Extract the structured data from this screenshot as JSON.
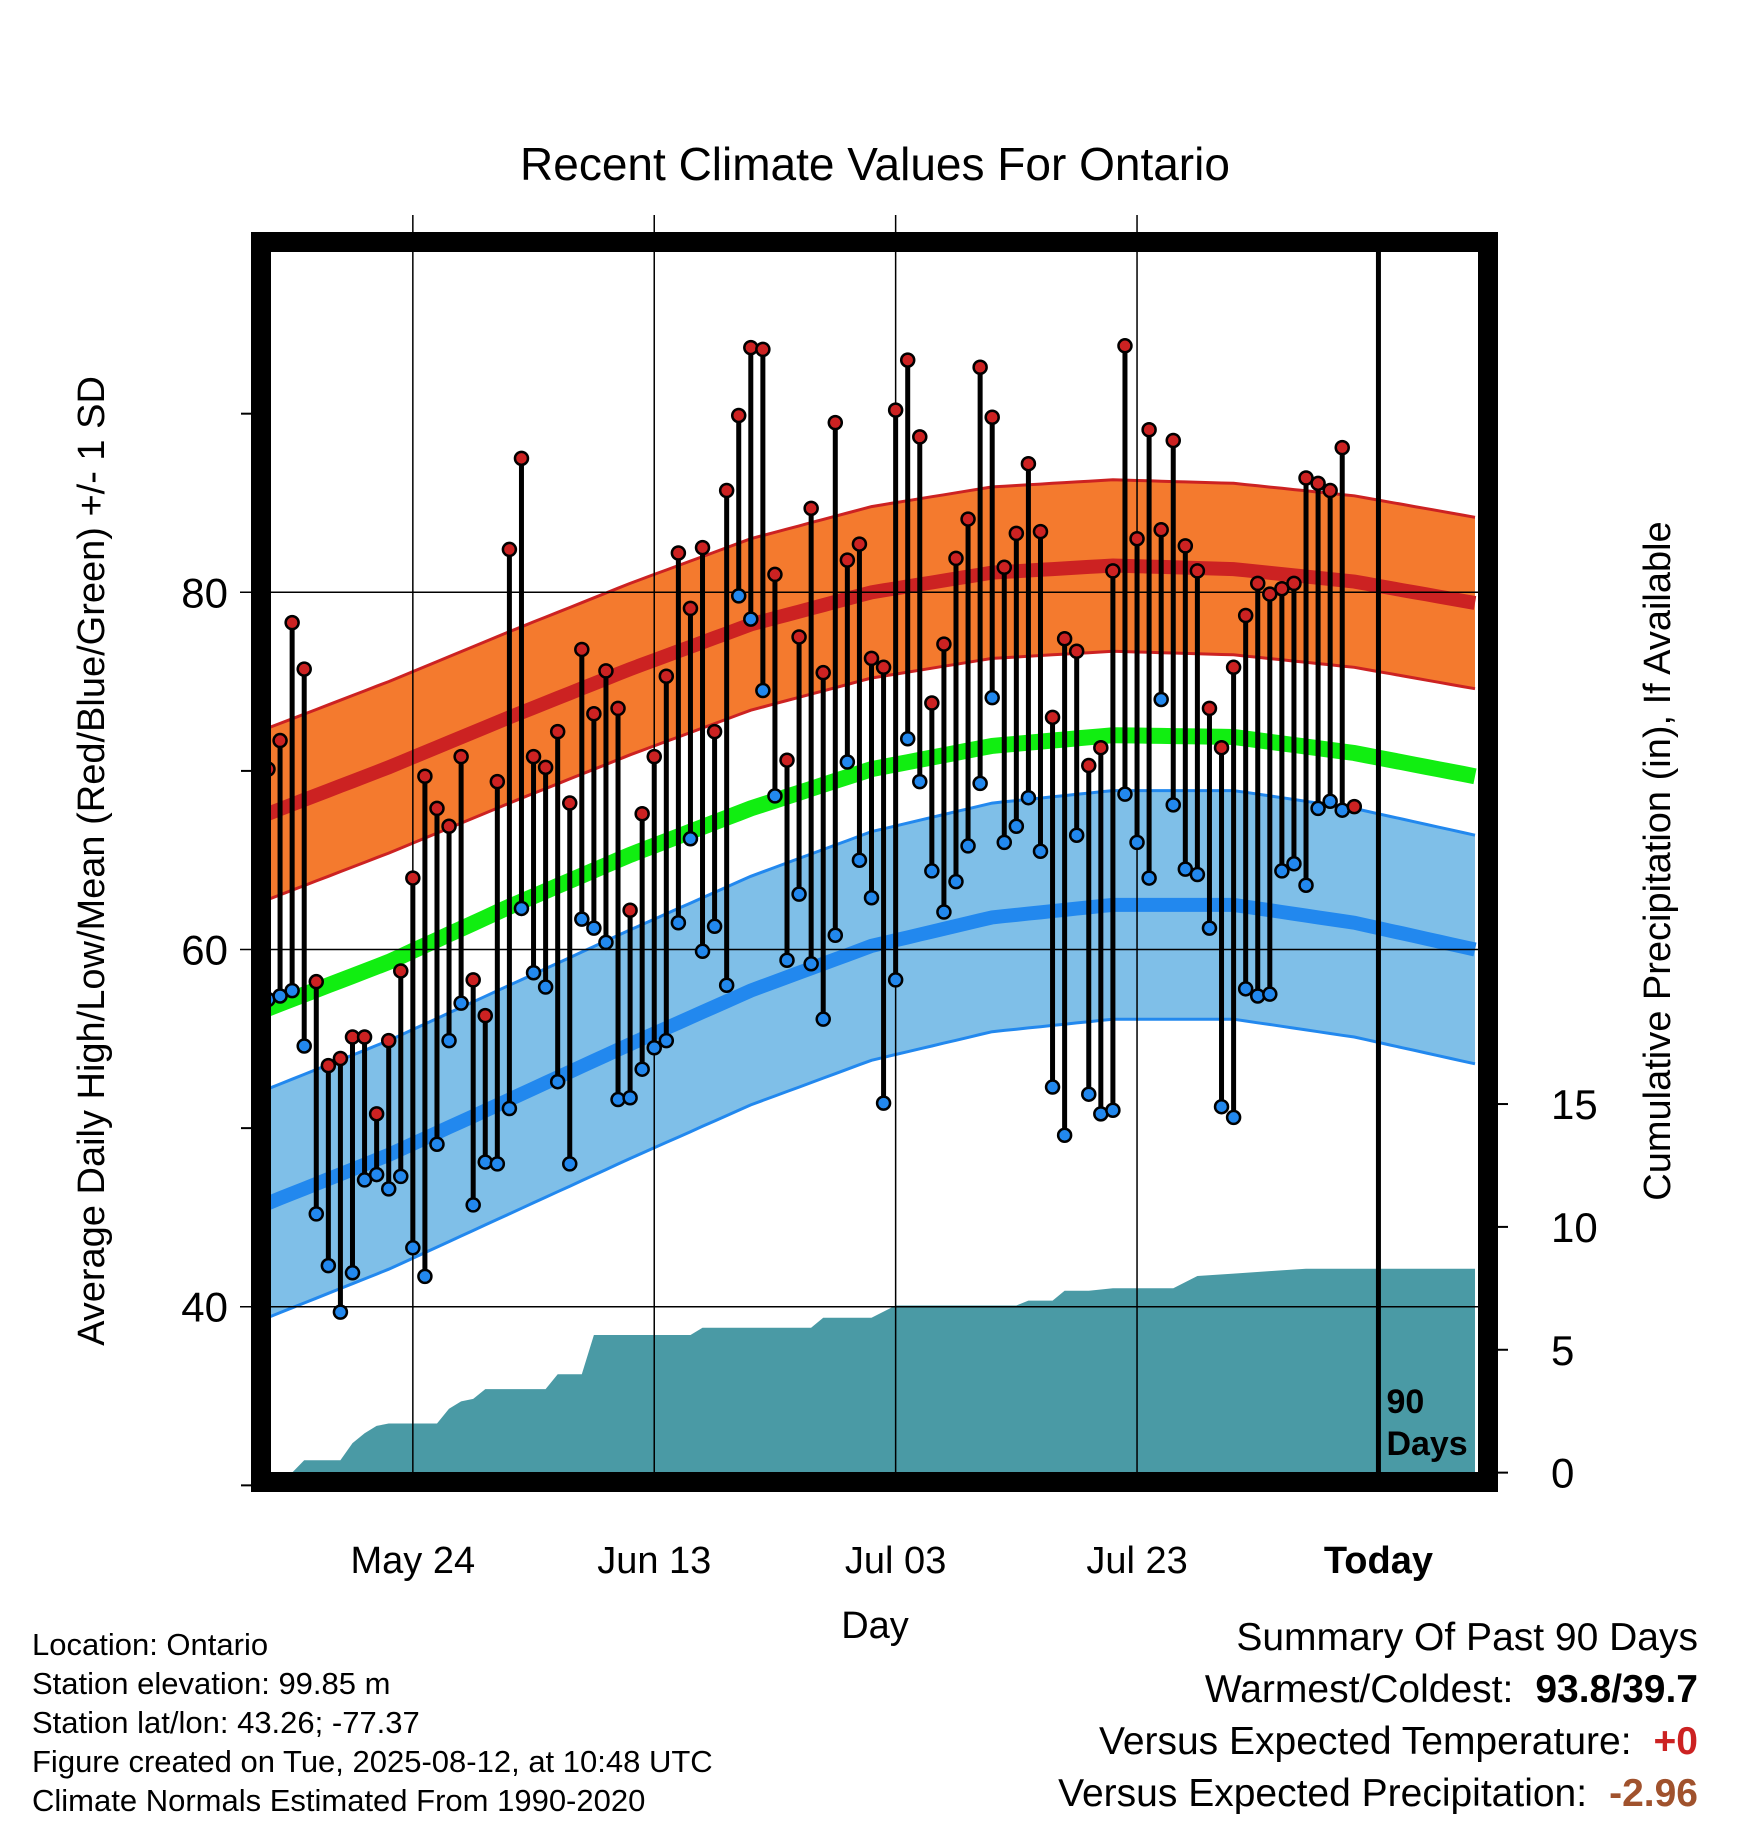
{
  "chart_data": {
    "type": "line",
    "title": "Recent Climate Values For Ontario",
    "xlabel": "Day",
    "ylabel_left": "Average Daily High/Low/Mean (Red/Blue/Green) +/- 1 SD",
    "ylabel_right": "Cumulative Precipitation (in), If Available",
    "x_tick_labels": [
      "May 24",
      "Jun 13",
      "Jul 03",
      "Jul 23",
      "Today"
    ],
    "x_tick_days": [
      12,
      32,
      52,
      72,
      92
    ],
    "x_range_days": [
      0,
      100
    ],
    "y_left_range": [
      30.3,
      99.5
    ],
    "y_left_ticks": [
      40,
      60,
      80
    ],
    "y_left_minor_ticks": [
      30,
      50,
      70,
      90
    ],
    "y_right_range": [
      -0.3,
      50
    ],
    "y_right_ticks": [
      0,
      5,
      10,
      15
    ],
    "grid": true,
    "today_marker": {
      "day": 92,
      "label_line1": "90",
      "label_line2": "Days"
    },
    "normals": {
      "high_mean": [
        [
          0,
          67.6
        ],
        [
          10,
          70.2
        ],
        [
          20,
          73.0
        ],
        [
          30,
          75.7
        ],
        [
          40,
          78.2
        ],
        [
          50,
          80.0
        ],
        [
          60,
          81.1
        ],
        [
          70,
          81.5
        ],
        [
          80,
          81.3
        ],
        [
          90,
          80.6
        ],
        [
          100,
          79.4
        ]
      ],
      "high_sd": 4.8,
      "low_mean": [
        [
          0,
          45.8
        ],
        [
          10,
          48.5
        ],
        [
          20,
          51.6
        ],
        [
          30,
          54.7
        ],
        [
          40,
          57.7
        ],
        [
          50,
          60.2
        ],
        [
          60,
          61.8
        ],
        [
          70,
          62.5
        ],
        [
          80,
          62.5
        ],
        [
          90,
          61.5
        ],
        [
          100,
          60.0
        ]
      ],
      "low_sd": 6.4,
      "avg_mean": [
        [
          0,
          56.7
        ],
        [
          10,
          59.3
        ],
        [
          20,
          62.4
        ],
        [
          30,
          65.3
        ],
        [
          40,
          67.9
        ],
        [
          50,
          70.1
        ],
        [
          60,
          71.4
        ],
        [
          70,
          72.0
        ],
        [
          80,
          71.9
        ],
        [
          90,
          71.0
        ],
        [
          100,
          69.7
        ]
      ]
    },
    "series": [
      {
        "name": "Daily High",
        "color": "#cc2222",
        "x": [
          0,
          1,
          2,
          3,
          4,
          5,
          6,
          7,
          8,
          9,
          10,
          11,
          12,
          13,
          14,
          15,
          16,
          17,
          18,
          19,
          20,
          21,
          22,
          23,
          24,
          25,
          26,
          27,
          28,
          29,
          30,
          31,
          32,
          33,
          34,
          35,
          36,
          37,
          38,
          39,
          40,
          41,
          42,
          43,
          44,
          45,
          46,
          47,
          48,
          49,
          50,
          51,
          52,
          53,
          54,
          55,
          56,
          57,
          58,
          59,
          60,
          61,
          62,
          63,
          64,
          65,
          66,
          67,
          68,
          69,
          70,
          71,
          72,
          73,
          74,
          75,
          76,
          77,
          78,
          79,
          80,
          81,
          82,
          83,
          84,
          85,
          86,
          87,
          88,
          89,
          90
        ],
        "values": [
          70.1,
          71.7,
          78.3,
          75.7,
          58.2,
          53.5,
          53.9,
          55.1,
          55.1,
          50.8,
          54.9,
          58.8,
          64.0,
          69.7,
          67.9,
          66.9,
          70.8,
          58.3,
          56.3,
          69.4,
          82.4,
          87.5,
          70.8,
          70.2,
          72.2,
          68.2,
          76.8,
          73.2,
          75.6,
          73.5,
          62.2,
          67.6,
          70.8,
          75.3,
          82.2,
          79.1,
          82.5,
          72.2,
          85.7,
          89.9,
          93.7,
          93.6,
          81.0,
          70.6,
          77.5,
          84.7,
          75.5,
          89.5,
          81.8,
          82.7,
          76.3,
          75.8,
          90.2,
          93.0,
          88.7,
          73.8,
          77.1,
          81.9,
          84.1,
          92.6,
          89.8,
          81.4,
          83.3,
          87.2,
          83.4,
          73.0,
          77.4,
          76.7,
          70.3,
          71.3,
          81.2,
          93.8,
          83.0,
          89.1,
          83.5,
          88.5,
          82.6,
          81.2,
          73.5,
          71.3,
          75.8,
          78.7,
          80.5,
          79.9,
          80.2,
          80.5,
          86.4,
          86.1,
          85.7,
          88.1,
          68.0
        ]
      },
      {
        "name": "Daily Low",
        "color": "#2288ee",
        "x": [
          0,
          1,
          2,
          3,
          4,
          5,
          6,
          7,
          8,
          9,
          10,
          11,
          12,
          13,
          14,
          15,
          16,
          17,
          18,
          19,
          20,
          21,
          22,
          23,
          24,
          25,
          26,
          27,
          28,
          29,
          30,
          31,
          32,
          33,
          34,
          35,
          36,
          37,
          38,
          39,
          40,
          41,
          42,
          43,
          44,
          45,
          46,
          47,
          48,
          49,
          50,
          51,
          52,
          53,
          54,
          55,
          56,
          57,
          58,
          59,
          60,
          61,
          62,
          63,
          64,
          65,
          66,
          67,
          68,
          69,
          70,
          71,
          72,
          73,
          74,
          75,
          76,
          77,
          78,
          79,
          80,
          81,
          82,
          83,
          84,
          85,
          86,
          87,
          88,
          89,
          90
        ],
        "values": [
          57.2,
          57.4,
          57.7,
          54.6,
          45.2,
          42.3,
          39.7,
          41.9,
          47.1,
          47.4,
          46.6,
          47.3,
          43.3,
          41.7,
          49.1,
          54.9,
          57.0,
          45.7,
          48.1,
          48.0,
          51.1,
          62.3,
          58.7,
          57.9,
          52.6,
          48.0,
          61.7,
          61.2,
          60.4,
          51.6,
          51.7,
          53.3,
          54.5,
          54.9,
          61.5,
          66.2,
          59.9,
          61.3,
          58.0,
          79.8,
          78.5,
          74.5,
          68.6,
          59.4,
          63.1,
          59.2,
          56.1,
          60.8,
          70.5,
          65.0,
          62.9,
          51.4,
          58.3,
          71.8,
          69.4,
          64.4,
          62.1,
          63.8,
          65.8,
          69.3,
          74.1,
          66.0,
          66.9,
          68.5,
          65.5,
          52.3,
          49.6,
          66.4,
          51.9,
          50.8,
          51.0,
          68.7,
          66.0,
          64.0,
          74.0,
          68.1,
          64.5,
          64.2,
          61.2,
          51.2,
          50.6,
          57.8,
          57.4,
          57.5,
          64.4,
          64.8,
          63.6,
          67.9,
          68.3,
          67.8,
          null
        ]
      },
      {
        "name": "Cumulative Precipitation",
        "color": "#4a9aa5",
        "x": [
          0,
          2,
          3,
          5,
          6,
          7,
          8,
          9,
          10,
          11,
          12,
          13,
          14,
          15,
          16,
          17,
          18,
          19,
          20,
          21,
          22,
          23,
          24,
          25,
          26,
          27,
          28,
          30,
          33,
          34,
          35,
          36,
          39,
          40,
          41,
          42,
          43,
          45,
          46,
          47,
          48,
          50,
          52,
          55,
          56,
          57,
          58,
          59,
          60,
          62,
          63,
          64,
          65,
          66,
          68,
          70,
          72,
          74,
          75,
          77,
          80,
          83,
          86,
          88,
          92,
          100
        ],
        "values": [
          0.0,
          0.0,
          0.5,
          0.5,
          0.5,
          1.2,
          1.6,
          1.9,
          2.0,
          2.0,
          2.0,
          2.0,
          2.0,
          2.6,
          2.9,
          3.0,
          3.4,
          3.4,
          3.4,
          3.4,
          3.4,
          3.4,
          4.0,
          4.0,
          4.0,
          5.6,
          5.6,
          5.6,
          5.6,
          5.6,
          5.6,
          5.9,
          5.9,
          5.9,
          5.9,
          5.9,
          5.9,
          5.9,
          6.3,
          6.3,
          6.3,
          6.3,
          6.8,
          6.8,
          6.8,
          6.8,
          6.8,
          6.8,
          6.8,
          6.8,
          7.0,
          7.0,
          7.0,
          7.4,
          7.4,
          7.5,
          7.5,
          7.5,
          7.5,
          8.0,
          8.1,
          8.2,
          8.3,
          8.3,
          8.3,
          8.3
        ]
      }
    ]
  },
  "meta": {
    "location": "Location: Ontario",
    "elevation": "Station elevation: 99.85 m",
    "latlon": "Station lat/lon: 43.26; -77.37",
    "created": "Figure created on Tue, 2025-08-12, at 10:48 UTC",
    "normals": "Climate Normals Estimated From 1990-2020"
  },
  "summary": {
    "title": "Summary Of Past 90 Days",
    "range_label": "Warmest/Coldest:",
    "range_value": "93.8/39.7",
    "temp_label": "Versus Expected Temperature:",
    "temp_value": "+0",
    "temp_color": "#cc2222",
    "precip_label": "Versus Expected Precipitation:",
    "precip_value": "-2.96",
    "precip_color": "#a0522d"
  },
  "colors": {
    "high_band": "#f47a2e",
    "high_line": "#cc2222",
    "low_band": "#7fbfe8",
    "low_line": "#2288ee",
    "avg_line": "#11ee11",
    "precip_fill": "#4a9aa5"
  }
}
